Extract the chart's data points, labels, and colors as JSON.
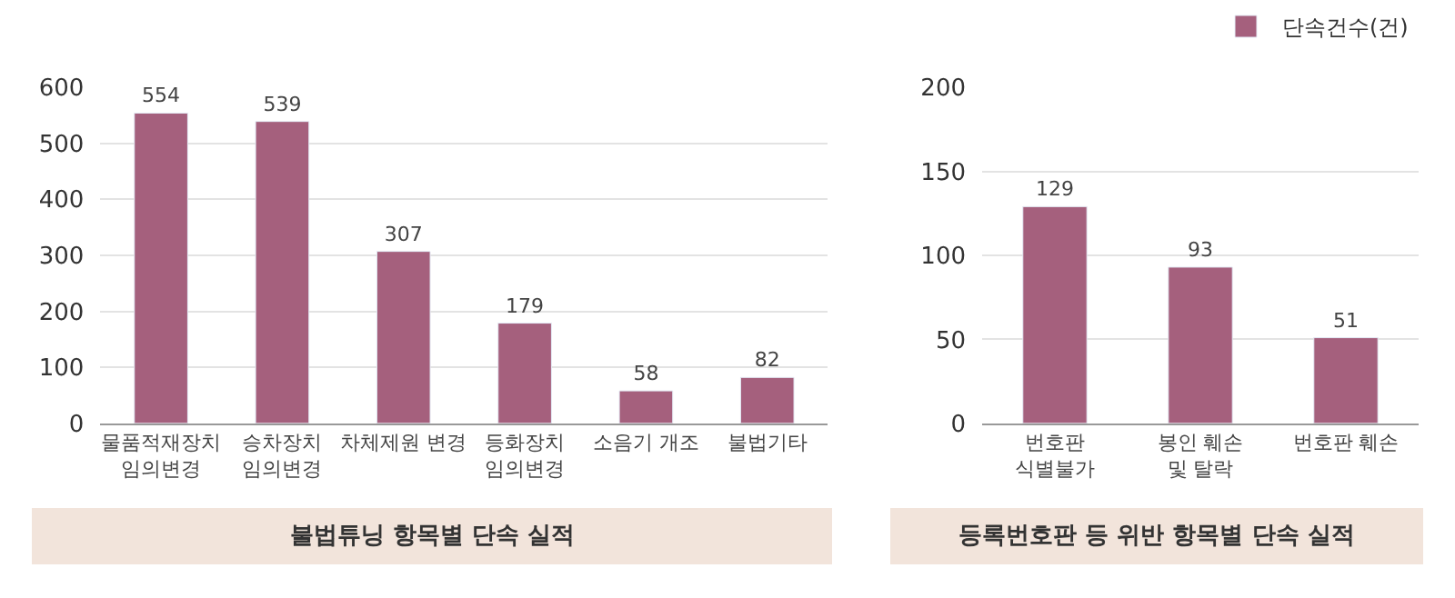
{
  "chart_data": [
    {
      "type": "bar",
      "title": "불법튜닝 항목별 단속 실적",
      "categories": [
        "물품적재장치\n임의변경",
        "승차장치\n임의변경",
        "차체제원 변경",
        "등화장치\n임의변경",
        "소음기 개조",
        "불법기타"
      ],
      "series": [
        {
          "color": "#a5607d",
          "values": [
            554,
            539,
            307,
            179,
            58,
            82
          ]
        }
      ],
      "ylim": [
        0,
        600
      ],
      "yticks": [
        0,
        100,
        200,
        300,
        400,
        500,
        600
      ],
      "grid": "y",
      "data_labels": true
    },
    {
      "type": "bar",
      "title": "등록번호판 등 위반 항목별 단속 실적",
      "categories": [
        "번호판\n식별불가",
        "봉인 훼손\n및 탈락",
        "번호판 훼손"
      ],
      "series": [
        {
          "name": "단속건수(건)",
          "color": "#a5607d",
          "values": [
            129,
            93,
            51
          ]
        }
      ],
      "ylim": [
        0,
        200
      ],
      "yticks": [
        0,
        50,
        100,
        150,
        200
      ],
      "grid": "y",
      "data_labels": true,
      "legend": "top right"
    }
  ]
}
